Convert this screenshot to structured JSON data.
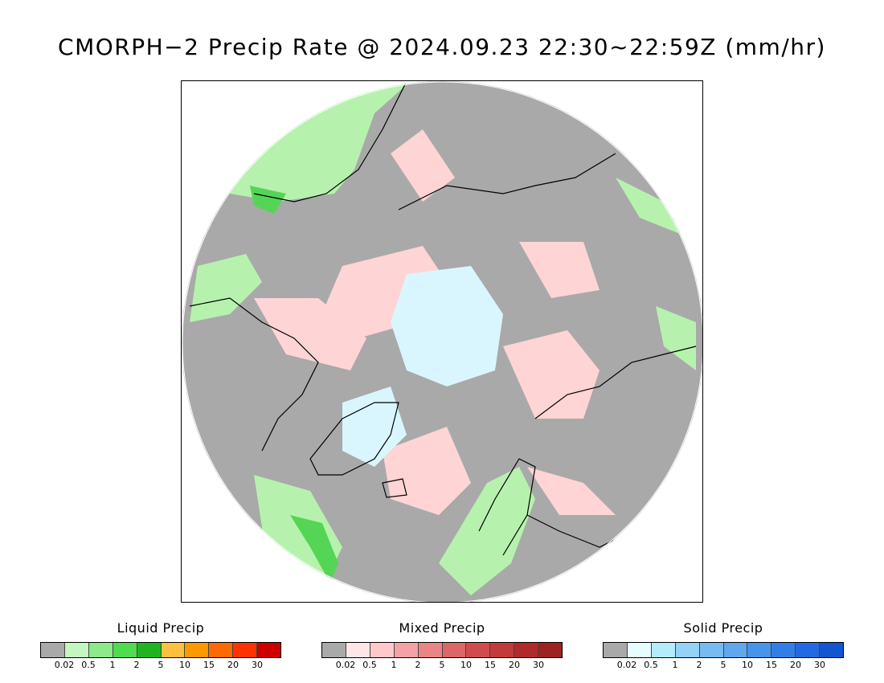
{
  "title": "CMORPH−2 Precip Rate @ 2024.09.23 22:30~22:59Z (mm/hr)",
  "map": {
    "colors": {
      "frame_bg": "#ffffff",
      "no_precip_gray": "#a9a9a9",
      "coast": "#000000",
      "liquid_light": "#b6f2ae",
      "liquid_mid": "#55d555",
      "mixed_light": "#ffd4d4",
      "solid_light": "#d9f6ff"
    }
  },
  "legends": [
    {
      "id": "liquid",
      "title": "Liquid Precip",
      "colors": [
        "#a9a9a9",
        "#c4f7bf",
        "#8de98a",
        "#4fdc4f",
        "#20b520",
        "#ffc040",
        "#ff9900",
        "#ff6a00",
        "#ff3300",
        "#cc0000"
      ],
      "ticks": [
        "0.02",
        "0.5",
        "1",
        "2",
        "5",
        "10",
        "15",
        "20",
        "30"
      ]
    },
    {
      "id": "mixed",
      "title": "Mixed Precip",
      "colors": [
        "#a9a9a9",
        "#ffe6e6",
        "#ffc9c9",
        "#f3a3a3",
        "#ea8585",
        "#dd6666",
        "#d04c4c",
        "#c33a3a",
        "#b02a2a",
        "#9f2222"
      ],
      "ticks": [
        "0.02",
        "0.5",
        "1",
        "2",
        "5",
        "10",
        "15",
        "20",
        "30"
      ]
    },
    {
      "id": "solid",
      "title": "Solid Precip",
      "colors": [
        "#a9a9a9",
        "#e6fcff",
        "#b4ecfb",
        "#94d2f6",
        "#78bbf0",
        "#5fa8ee",
        "#4794ec",
        "#337de8",
        "#236ae2",
        "#1456d2"
      ],
      "ticks": [
        "0.02",
        "0.5",
        "1",
        "2",
        "5",
        "10",
        "15",
        "20",
        "30"
      ]
    }
  ]
}
